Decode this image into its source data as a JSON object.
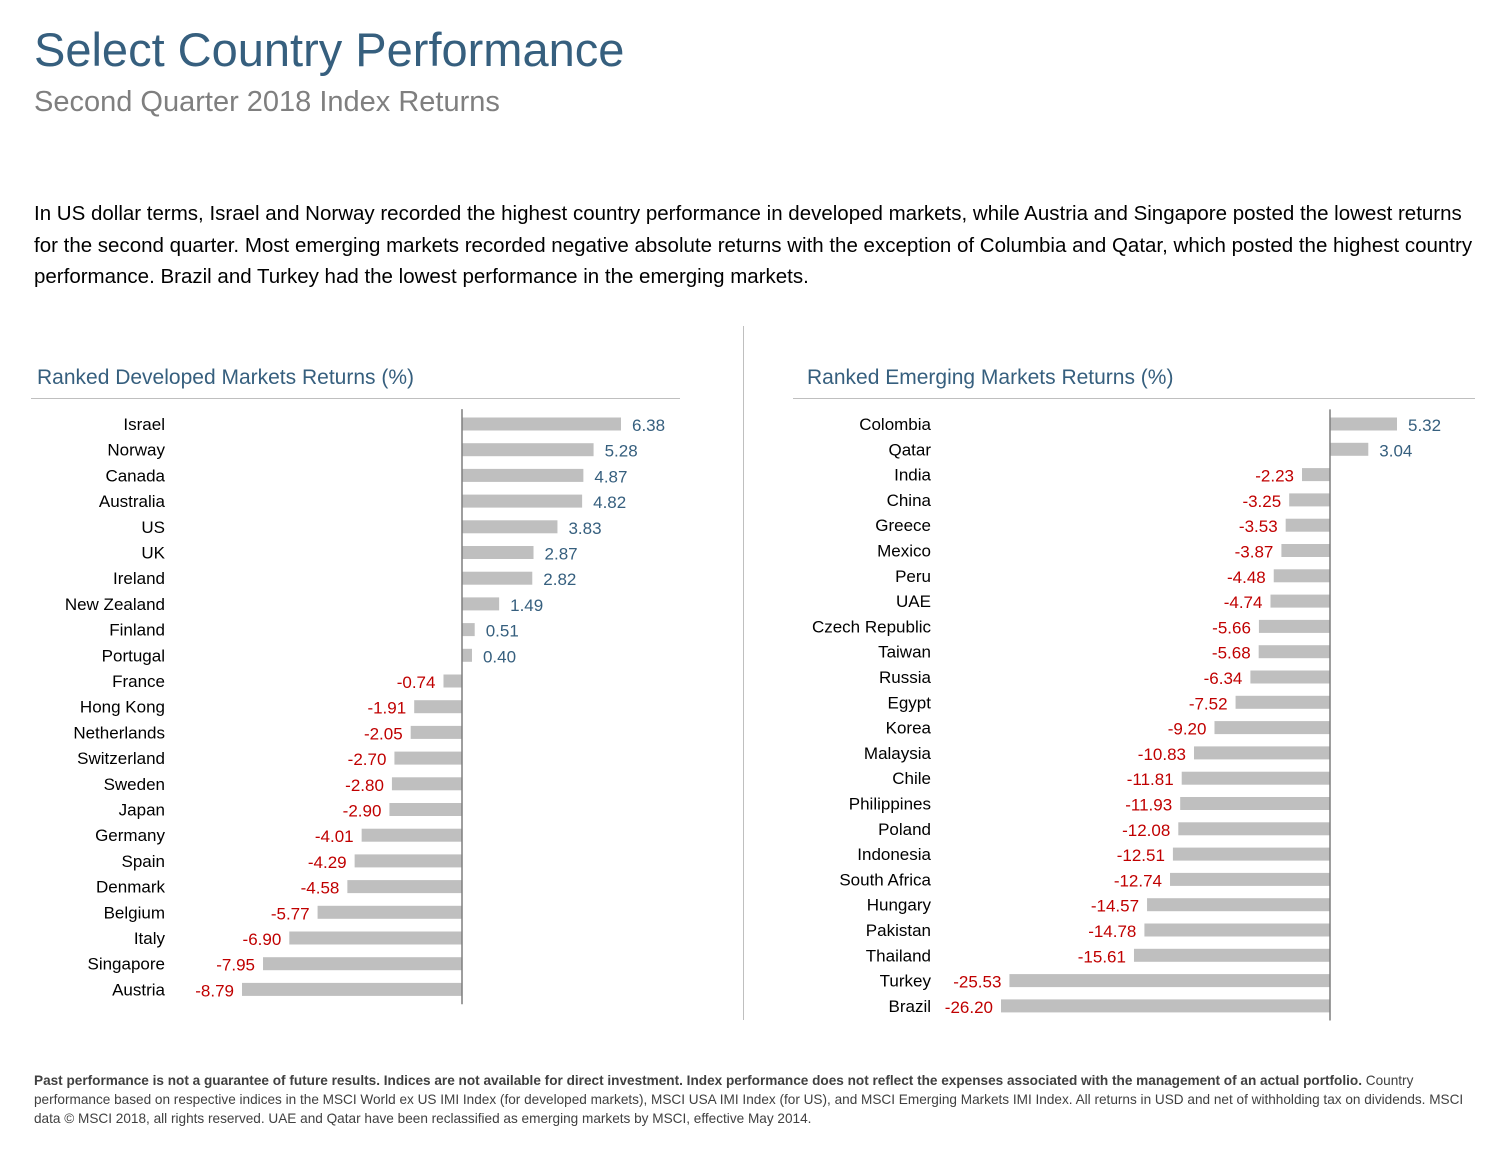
{
  "title": "Select Country Performance",
  "subtitle": "Second Quarter 2018 Index Returns",
  "intro": "In US dollar terms, Israel and Norway recorded the highest country performance in developed markets, while Austria and Singapore posted the lowest returns for the second quarter. Most emerging markets recorded negative absolute returns with the exception of Columbia and Qatar, which posted the highest country performance. Brazil and Turkey had the lowest performance in the emerging markets.",
  "colors": {
    "title": "#365f7e",
    "bar": "#bfbfbf",
    "positive_label": "#365f7e",
    "negative_label": "#c00000"
  },
  "chart_data": [
    {
      "type": "bar",
      "orientation": "horizontal",
      "title": "Ranked Developed Markets Returns (%)",
      "categories": [
        "Israel",
        "Norway",
        "Canada",
        "Australia",
        "US",
        "UK",
        "Ireland",
        "New Zealand",
        "Finland",
        "Portugal",
        "France",
        "Hong Kong",
        "Netherlands",
        "Switzerland",
        "Sweden",
        "Japan",
        "Germany",
        "Spain",
        "Denmark",
        "Belgium",
        "Italy",
        "Singapore",
        "Austria"
      ],
      "values": [
        6.38,
        5.28,
        4.87,
        4.82,
        3.83,
        2.87,
        2.82,
        1.49,
        0.51,
        0.4,
        -0.74,
        -1.91,
        -2.05,
        -2.7,
        -2.8,
        -2.9,
        -4.01,
        -4.29,
        -4.58,
        -5.77,
        -6.9,
        -7.95,
        -8.79
      ],
      "labels": [
        "6.38",
        "5.28",
        "4.87",
        "4.82",
        "3.83",
        "2.87",
        "2.82",
        "1.49",
        "0.51",
        "0.40",
        "-0.74",
        "-1.91",
        "-2.05",
        "-2.70",
        "-2.80",
        "-2.90",
        "-4.01",
        "-4.29",
        "-4.58",
        "-5.77",
        "-6.90",
        "-7.95",
        "-8.79"
      ],
      "xlim": [
        -8.79,
        6.38
      ],
      "legend": "none",
      "grid": false
    },
    {
      "type": "bar",
      "orientation": "horizontal",
      "title": "Ranked Emerging Markets Returns (%)",
      "categories": [
        "Colombia",
        "Qatar",
        "India",
        "China",
        "Greece",
        "Mexico",
        "Peru",
        "UAE",
        "Czech Republic",
        "Taiwan",
        "Russia",
        "Egypt",
        "Korea",
        "Malaysia",
        "Chile",
        "Philippines",
        "Poland",
        "Indonesia",
        "South Africa",
        "Hungary",
        "Pakistan",
        "Thailand",
        "Turkey",
        "Brazil"
      ],
      "values": [
        5.32,
        3.04,
        -2.23,
        -3.25,
        -3.53,
        -3.87,
        -4.48,
        -4.74,
        -5.66,
        -5.68,
        -6.34,
        -7.52,
        -9.2,
        -10.83,
        -11.81,
        -11.93,
        -12.08,
        -12.51,
        -12.74,
        -14.57,
        -14.78,
        -15.61,
        -25.53,
        -26.2
      ],
      "labels": [
        "5.32",
        "3.04",
        "-2.23",
        "-3.25",
        "-3.53",
        "-3.87",
        "-4.48",
        "-4.74",
        "-5.66",
        "-5.68",
        "-6.34",
        "-7.52",
        "-9.20",
        "-10.83",
        "-11.81",
        "-11.93",
        "-12.08",
        "-12.51",
        "-12.74",
        "-14.57",
        "-14.78",
        "-15.61",
        "-25.53",
        "-26.20"
      ],
      "xlim": [
        -26.2,
        5.32
      ],
      "legend": "none",
      "grid": false
    }
  ],
  "footer": {
    "bold": "Past performance is not a guarantee of future results. Indices are not available for direct investment. Index performance does not reflect the expenses associated with the management of an actual portfolio.",
    "text": "Country performance based on respective indices in the MSCI World ex US IMI Index (for developed markets), MSCI USA IMI Index (for US), and MSCI Emerging Markets IMI Index. All returns in USD and net of withholding tax on dividends. MSCI data © MSCI 2018, all rights reserved. UAE and Qatar have been reclassified as emerging markets by MSCI, effective May 2014."
  }
}
